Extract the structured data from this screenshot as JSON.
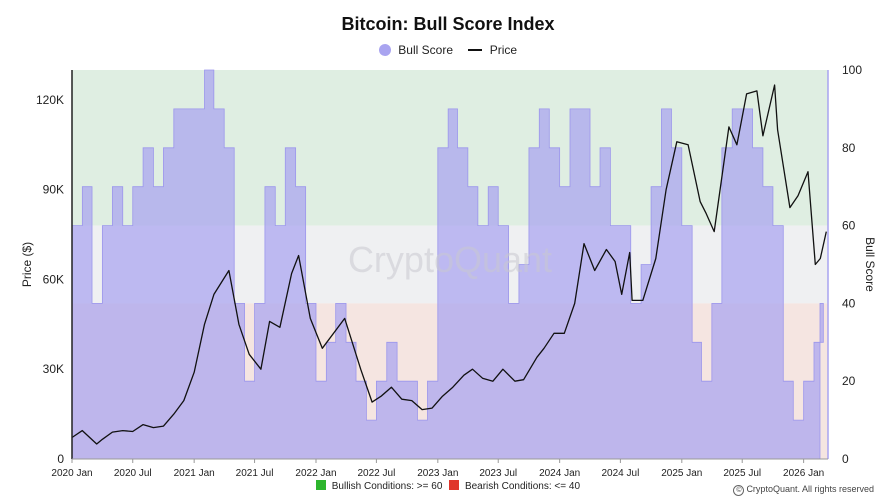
{
  "chart_data": {
    "type": "area",
    "title": "Bitcoin: Bull Score Index",
    "legend": [
      "Bull Score",
      "Price"
    ],
    "legend_placement": "top-center",
    "ylabel_left": "Price ($)",
    "ylabel_right": "Bull Score",
    "y_left_ticks": [
      "0",
      "30K",
      "60K",
      "90K",
      "120K"
    ],
    "y_left_range": [
      0,
      130000
    ],
    "y_right_ticks": [
      "0",
      "20",
      "40",
      "60",
      "80",
      "100"
    ],
    "y_right_range": [
      0,
      100
    ],
    "x_ticks": [
      "2020 Jan",
      "2020 Jul",
      "2021 Jan",
      "2021 Jul",
      "2022 Jan",
      "2022 Jul",
      "2023 Jan",
      "2023 Jul",
      "2024 Jan",
      "2024 Jul",
      "2025 Jan",
      "2025 Jul",
      "2026 Jan"
    ],
    "x_range": [
      "2020-01-01",
      "2026-03-15"
    ],
    "zones": [
      {
        "from": 60,
        "to": 100,
        "color": "#dfeee2",
        "label": "Bullish Conditions: >= 60"
      },
      {
        "from": 40,
        "to": 60,
        "color": "#eff0f2"
      },
      {
        "from": 0,
        "to": 40,
        "color": "#f5e5e1",
        "label": "Bearish Conditions: <= 40"
      }
    ],
    "series": [
      {
        "name": "Bull Score",
        "color": "#a9a4f0",
        "points": [
          [
            "2020-01-01",
            60
          ],
          [
            "2020-02-01",
            70
          ],
          [
            "2020-03-01",
            40
          ],
          [
            "2020-04-01",
            60
          ],
          [
            "2020-05-01",
            70
          ],
          [
            "2020-06-01",
            60
          ],
          [
            "2020-07-01",
            70
          ],
          [
            "2020-08-01",
            80
          ],
          [
            "2020-09-01",
            70
          ],
          [
            "2020-10-01",
            80
          ],
          [
            "2020-11-01",
            90
          ],
          [
            "2020-12-01",
            90
          ],
          [
            "2021-01-01",
            90
          ],
          [
            "2021-02-01",
            100
          ],
          [
            "2021-03-01",
            90
          ],
          [
            "2021-04-01",
            80
          ],
          [
            "2021-05-01",
            40
          ],
          [
            "2021-06-01",
            20
          ],
          [
            "2021-07-01",
            40
          ],
          [
            "2021-08-01",
            70
          ],
          [
            "2021-09-01",
            60
          ],
          [
            "2021-10-01",
            80
          ],
          [
            "2021-11-01",
            70
          ],
          [
            "2021-12-01",
            40
          ],
          [
            "2022-01-01",
            20
          ],
          [
            "2022-02-01",
            30
          ],
          [
            "2022-03-01",
            40
          ],
          [
            "2022-04-01",
            30
          ],
          [
            "2022-05-01",
            20
          ],
          [
            "2022-06-01",
            10
          ],
          [
            "2022-07-01",
            20
          ],
          [
            "2022-08-01",
            30
          ],
          [
            "2022-09-01",
            20
          ],
          [
            "2022-10-01",
            20
          ],
          [
            "2022-11-01",
            10
          ],
          [
            "2022-12-01",
            20
          ],
          [
            "2023-01-01",
            80
          ],
          [
            "2023-02-01",
            90
          ],
          [
            "2023-03-01",
            80
          ],
          [
            "2023-04-01",
            70
          ],
          [
            "2023-05-01",
            60
          ],
          [
            "2023-06-01",
            70
          ],
          [
            "2023-07-01",
            60
          ],
          [
            "2023-08-01",
            40
          ],
          [
            "2023-09-01",
            50
          ],
          [
            "2023-10-01",
            80
          ],
          [
            "2023-11-01",
            90
          ],
          [
            "2023-12-01",
            80
          ],
          [
            "2024-01-01",
            70
          ],
          [
            "2024-02-01",
            90
          ],
          [
            "2024-03-01",
            90
          ],
          [
            "2024-04-01",
            70
          ],
          [
            "2024-05-01",
            80
          ],
          [
            "2024-06-01",
            60
          ],
          [
            "2024-07-01",
            60
          ],
          [
            "2024-08-01",
            40
          ],
          [
            "2024-09-01",
            50
          ],
          [
            "2024-10-01",
            70
          ],
          [
            "2024-11-01",
            90
          ],
          [
            "2024-12-01",
            80
          ],
          [
            "2025-01-01",
            60
          ],
          [
            "2025-02-01",
            30
          ],
          [
            "2025-03-01",
            20
          ],
          [
            "2025-04-01",
            40
          ],
          [
            "2025-05-01",
            80
          ],
          [
            "2025-06-01",
            90
          ],
          [
            "2025-07-01",
            90
          ],
          [
            "2025-08-01",
            80
          ],
          [
            "2025-09-01",
            70
          ],
          [
            "2025-10-01",
            60
          ],
          [
            "2025-11-01",
            20
          ],
          [
            "2025-12-01",
            10
          ],
          [
            "2026-01-01",
            20
          ],
          [
            "2026-02-01",
            30
          ],
          [
            "2026-03-01",
            40
          ]
        ]
      },
      {
        "name": "Price",
        "color": "#111111",
        "points": [
          [
            "2020-01-01",
            7200
          ],
          [
            "2020-02-01",
            9500
          ],
          [
            "2020-03-15",
            5000
          ],
          [
            "2020-04-01",
            6600
          ],
          [
            "2020-05-01",
            9000
          ],
          [
            "2020-06-01",
            9500
          ],
          [
            "2020-07-01",
            9200
          ],
          [
            "2020-08-01",
            11500
          ],
          [
            "2020-09-01",
            10500
          ],
          [
            "2020-10-01",
            11000
          ],
          [
            "2020-11-01",
            15000
          ],
          [
            "2020-12-01",
            19500
          ],
          [
            "2021-01-01",
            29000
          ],
          [
            "2021-02-01",
            45000
          ],
          [
            "2021-03-01",
            55000
          ],
          [
            "2021-04-15",
            63000
          ],
          [
            "2021-05-15",
            45000
          ],
          [
            "2021-06-15",
            35000
          ],
          [
            "2021-07-20",
            30000
          ],
          [
            "2021-08-15",
            46000
          ],
          [
            "2021-09-15",
            44000
          ],
          [
            "2021-10-20",
            62000
          ],
          [
            "2021-11-10",
            68000
          ],
          [
            "2021-12-15",
            47000
          ],
          [
            "2022-01-20",
            37000
          ],
          [
            "2022-03-28",
            47000
          ],
          [
            "2022-05-15",
            30000
          ],
          [
            "2022-06-18",
            19000
          ],
          [
            "2022-07-15",
            21000
          ],
          [
            "2022-08-15",
            24000
          ],
          [
            "2022-09-15",
            20000
          ],
          [
            "2022-10-15",
            19500
          ],
          [
            "2022-11-15",
            16500
          ],
          [
            "2022-12-15",
            17000
          ],
          [
            "2023-01-15",
            21000
          ],
          [
            "2023-02-15",
            24000
          ],
          [
            "2023-03-20",
            28000
          ],
          [
            "2023-04-15",
            30000
          ],
          [
            "2023-05-15",
            27000
          ],
          [
            "2023-06-15",
            26000
          ],
          [
            "2023-07-15",
            30000
          ],
          [
            "2023-08-20",
            26000
          ],
          [
            "2023-09-15",
            26500
          ],
          [
            "2023-10-25",
            34000
          ],
          [
            "2023-11-15",
            37000
          ],
          [
            "2023-12-15",
            42000
          ],
          [
            "2024-01-15",
            42000
          ],
          [
            "2024-02-15",
            52000
          ],
          [
            "2024-03-14",
            72000
          ],
          [
            "2024-04-15",
            63000
          ],
          [
            "2024-05-20",
            70000
          ],
          [
            "2024-06-15",
            66000
          ],
          [
            "2024-07-05",
            55000
          ],
          [
            "2024-07-29",
            69000
          ],
          [
            "2024-08-05",
            53000
          ],
          [
            "2024-09-06",
            53000
          ],
          [
            "2024-10-15",
            67000
          ],
          [
            "2024-11-15",
            90000
          ],
          [
            "2024-12-17",
            106000
          ],
          [
            "2025-01-20",
            105000
          ],
          [
            "2025-02-25",
            86000
          ],
          [
            "2025-03-15",
            82000
          ],
          [
            "2025-04-08",
            76000
          ],
          [
            "2025-05-22",
            111000
          ],
          [
            "2025-06-15",
            105000
          ],
          [
            "2025-07-14",
            122000
          ],
          [
            "2025-08-14",
            123000
          ],
          [
            "2025-09-01",
            108000
          ],
          [
            "2025-10-06",
            125000
          ],
          [
            "2025-10-15",
            110000
          ],
          [
            "2025-11-21",
            84000
          ],
          [
            "2025-12-15",
            88000
          ],
          [
            "2026-01-14",
            96000
          ],
          [
            "2026-02-05",
            65000
          ],
          [
            "2026-02-20",
            67000
          ],
          [
            "2026-03-10",
            76000
          ]
        ]
      }
    ]
  },
  "watermark": "CryptoQuant",
  "footer": {
    "bullish_label": "Bullish Conditions: >= 60",
    "bearish_label": "Bearish Conditions: <= 40",
    "bullish_color": "#2db52d",
    "bearish_color": "#e0352b"
  },
  "copyright": "CryptoQuant. All rights reserved"
}
